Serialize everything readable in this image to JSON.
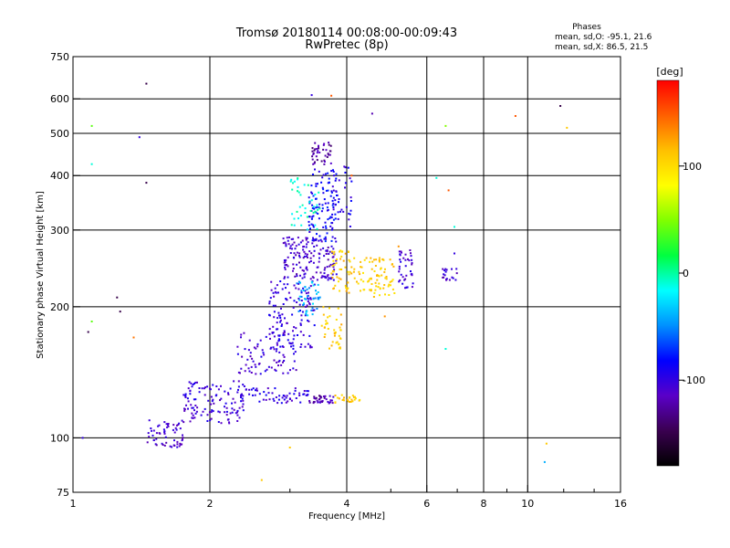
{
  "chart_data": {
    "type": "scatter",
    "title": "Tromsø 20180114 00:08:00-00:09:43",
    "subtitle": "RwPretec (8p)",
    "xlabel": "Frequency [MHz]",
    "ylabel": "Stationary phase Virtual Height [km]",
    "x_scale": "log",
    "y_scale": "log",
    "xlim": [
      1,
      16
    ],
    "ylim": [
      75,
      750
    ],
    "x_ticks": [
      1,
      2,
      4,
      6,
      8,
      10,
      16
    ],
    "x_minor_ticks": [
      3,
      5,
      7,
      9,
      12,
      14
    ],
    "y_ticks": [
      75,
      100,
      200,
      300,
      400,
      500,
      600,
      750
    ],
    "grid_x": [
      2,
      4,
      6,
      8,
      10
    ],
    "grid_y": [
      100,
      200,
      300,
      400,
      500,
      600
    ],
    "legend": {
      "heading": "Phases",
      "lines": [
        "mean, sd,O: -95.1, 21.6",
        "mean, sd,X:  86.5, 21.5"
      ]
    },
    "colorbar": {
      "label": "[deg]",
      "range": [
        -180,
        180
      ],
      "ticks": [
        100,
        0,
        -100
      ],
      "colors": [
        "#000000",
        "#3a0050",
        "#5a00c8",
        "#0000ff",
        "#0090ff",
        "#00ffff",
        "#00ff40",
        "#80ff00",
        "#ffff00",
        "#ffc000",
        "#ff6000",
        "#ff0000"
      ]
    },
    "clusters": [
      {
        "x": [
          1.45,
          1.75
        ],
        "y": [
          95,
          110
        ],
        "n": 60,
        "phase": -110
      },
      {
        "x": [
          1.75,
          2.4
        ],
        "y": [
          108,
          135
        ],
        "n": 120,
        "phase": -105
      },
      {
        "x": [
          2.3,
          3.3
        ],
        "y": [
          120,
          130
        ],
        "n": 60,
        "phase": -100
      },
      {
        "x": [
          3.3,
          3.75
        ],
        "y": [
          120,
          125
        ],
        "n": 35,
        "phase": -120
      },
      {
        "x": [
          3.75,
          4.3
        ],
        "y": [
          120,
          126
        ],
        "n": 25,
        "phase": 110
      },
      {
        "x": [
          2.3,
          3.1
        ],
        "y": [
          140,
          175
        ],
        "n": 80,
        "phase": -105
      },
      {
        "x": [
          2.7,
          3.4
        ],
        "y": [
          160,
          230
        ],
        "n": 130,
        "phase": -100
      },
      {
        "x": [
          2.9,
          3.8
        ],
        "y": [
          230,
          290
        ],
        "n": 160,
        "phase": -110
      },
      {
        "x": [
          3.3,
          3.8
        ],
        "y": [
          280,
          420
        ],
        "n": 100,
        "phase": -85
      },
      {
        "x": [
          3.35,
          3.7
        ],
        "y": [
          420,
          480
        ],
        "n": 40,
        "phase": -125
      },
      {
        "x": [
          3.7,
          4.1
        ],
        "y": [
          300,
          420
        ],
        "n": 40,
        "phase": -95
      },
      {
        "x": [
          3.7,
          4.3
        ],
        "y": [
          215,
          270
        ],
        "n": 60,
        "phase": 110
      },
      {
        "x": [
          4.3,
          5.1
        ],
        "y": [
          210,
          260
        ],
        "n": 70,
        "phase": 105
      },
      {
        "x": [
          5.2,
          5.6
        ],
        "y": [
          220,
          270
        ],
        "n": 40,
        "phase": -105
      },
      {
        "x": [
          6.5,
          7.0
        ],
        "y": [
          230,
          245
        ],
        "n": 20,
        "phase": -110
      },
      {
        "x": [
          3.5,
          3.9
        ],
        "y": [
          160,
          200
        ],
        "n": 40,
        "phase": 110
      },
      {
        "x": [
          3.1,
          3.5
        ],
        "y": [
          190,
          230
        ],
        "n": 40,
        "phase": -40
      },
      {
        "x": [
          3.0,
          3.5
        ],
        "y": [
          300,
          400
        ],
        "n": 40,
        "phase": -10
      }
    ],
    "scattered_points": [
      [
        1.45,
        650,
        -150
      ],
      [
        1.4,
        490,
        -100
      ],
      [
        1.45,
        385,
        -150
      ],
      [
        1.25,
        210,
        -150
      ],
      [
        1.27,
        195,
        -150
      ],
      [
        1.08,
        175,
        -150
      ],
      [
        1.05,
        100,
        -100
      ],
      [
        1.1,
        185,
        40
      ],
      [
        1.1,
        520,
        40
      ],
      [
        1.1,
        425,
        -10
      ],
      [
        1.36,
        170,
        140
      ],
      [
        3.35,
        612,
        -100
      ],
      [
        3.7,
        610,
        150
      ],
      [
        4.55,
        555,
        -120
      ],
      [
        6.6,
        520,
        50
      ],
      [
        9.4,
        548,
        150
      ],
      [
        11.8,
        578,
        -150
      ],
      [
        12.2,
        515,
        110
      ],
      [
        6.3,
        395,
        -10
      ],
      [
        6.7,
        370,
        150
      ],
      [
        6.9,
        305,
        -10
      ],
      [
        6.9,
        265,
        -100
      ],
      [
        6.6,
        160,
        -10
      ],
      [
        11.0,
        97,
        110
      ],
      [
        10.9,
        88,
        -40
      ],
      [
        2.6,
        80,
        110
      ],
      [
        3.0,
        95,
        110
      ],
      [
        4.85,
        190,
        130
      ],
      [
        4.1,
        400,
        150
      ],
      [
        5.2,
        275,
        130
      ]
    ]
  }
}
